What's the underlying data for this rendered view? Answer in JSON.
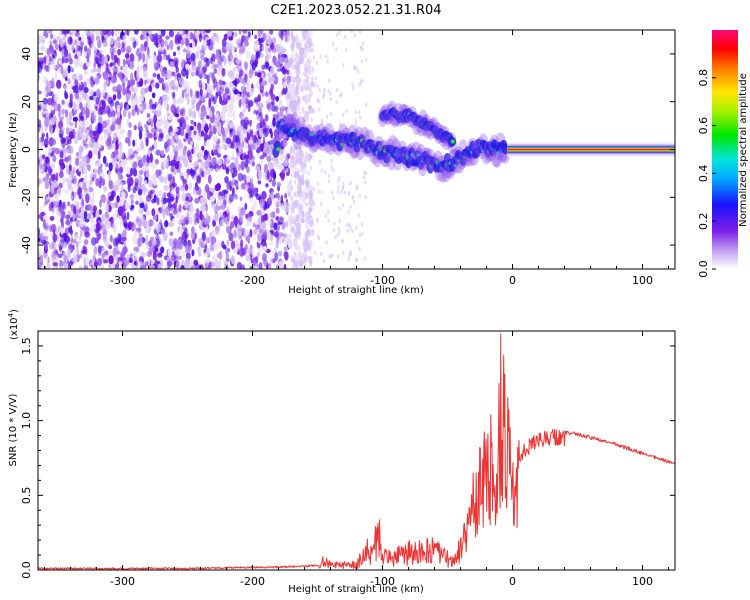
{
  "figure": {
    "title": "C2E1.2023.052.21.31.R04"
  },
  "chart_data": [
    {
      "type": "heatmap",
      "xlabel": "Height of straight line (km)",
      "ylabel": "Frequency (Hz)",
      "xlim": [
        -365,
        125
      ],
      "ylim": [
        -50,
        50
      ],
      "xticks": [
        -300,
        -200,
        -100,
        0,
        100
      ],
      "yticks": [
        -40,
        -20,
        0,
        20,
        40
      ],
      "colorbar": {
        "label": "Normalized spectral amplitude",
        "range": [
          0,
          1
        ],
        "ticks": [
          "0.0",
          "0.2",
          "0.4",
          "0.6",
          "0.8"
        ],
        "colormap": "rainbow (white → purple → blue → cyan → green → yellow → red → magenta)"
      },
      "features": {
        "noise_region_x": [
          -365,
          -172
        ],
        "signal_track": [
          {
            "x": -180,
            "y": 10
          },
          {
            "x": -160,
            "y": 6
          },
          {
            "x": -140,
            "y": 4
          },
          {
            "x": -120,
            "y": 3
          },
          {
            "x": -100,
            "y": -1
          },
          {
            "x": -80,
            "y": -3
          },
          {
            "x": -60,
            "y": -6
          },
          {
            "x": -45,
            "y": -6
          },
          {
            "x": -35,
            "y": -2
          },
          {
            "x": -25,
            "y": 1
          },
          {
            "x": -10,
            "y": 0
          },
          {
            "x": 0,
            "y": 0
          },
          {
            "x": 125,
            "y": 0
          }
        ],
        "branch_track": [
          {
            "x": -100,
            "y": 15
          },
          {
            "x": -80,
            "y": 14
          },
          {
            "x": -60,
            "y": 8
          },
          {
            "x": -45,
            "y": 3
          }
        ],
        "steady_line": {
          "x_start": 0,
          "x_end": 125,
          "y": 0
        }
      }
    },
    {
      "type": "line",
      "xlabel": "Height of straight line (km)",
      "ylabel": "SNR (10 * V/V)",
      "y_multiplier": "(x10^4)",
      "y_multiplier_base": "(x10",
      "y_multiplier_exp": "4",
      "y_multiplier_close": ")",
      "xlim": [
        -365,
        125
      ],
      "ylim": [
        0,
        1.6
      ],
      "xticks": [
        -300,
        -200,
        -100,
        0,
        100
      ],
      "yticks": [
        "0.0",
        "0.5",
        "1.0",
        "1.5"
      ],
      "series": [
        {
          "color": "#ee3333",
          "values_note": "SNR in units of 10^4",
          "envelope": [
            {
              "x": -365,
              "y": 0.01
            },
            {
              "x": -250,
              "y": 0.01
            },
            {
              "x": -180,
              "y": 0.02
            },
            {
              "x": -148,
              "y": 0.03
            },
            {
              "x": -145,
              "y": 0.11
            },
            {
              "x": -140,
              "y": 0.05
            },
            {
              "x": -120,
              "y": 0.06
            },
            {
              "x": -102,
              "y": 0.35
            },
            {
              "x": -97,
              "y": 0.12
            },
            {
              "x": -80,
              "y": 0.18
            },
            {
              "x": -60,
              "y": 0.2
            },
            {
              "x": -45,
              "y": 0.08
            },
            {
              "x": -35,
              "y": 0.4
            },
            {
              "x": -25,
              "y": 0.8
            },
            {
              "x": -15,
              "y": 1.0
            },
            {
              "x": -9,
              "y": 1.55
            },
            {
              "x": 0,
              "y": 0.75
            },
            {
              "x": 15,
              "y": 0.88
            },
            {
              "x": 30,
              "y": 0.93
            },
            {
              "x": 50,
              "y": 0.91
            },
            {
              "x": 80,
              "y": 0.84
            },
            {
              "x": 100,
              "y": 0.78
            },
            {
              "x": 125,
              "y": 0.71
            }
          ]
        }
      ]
    }
  ]
}
